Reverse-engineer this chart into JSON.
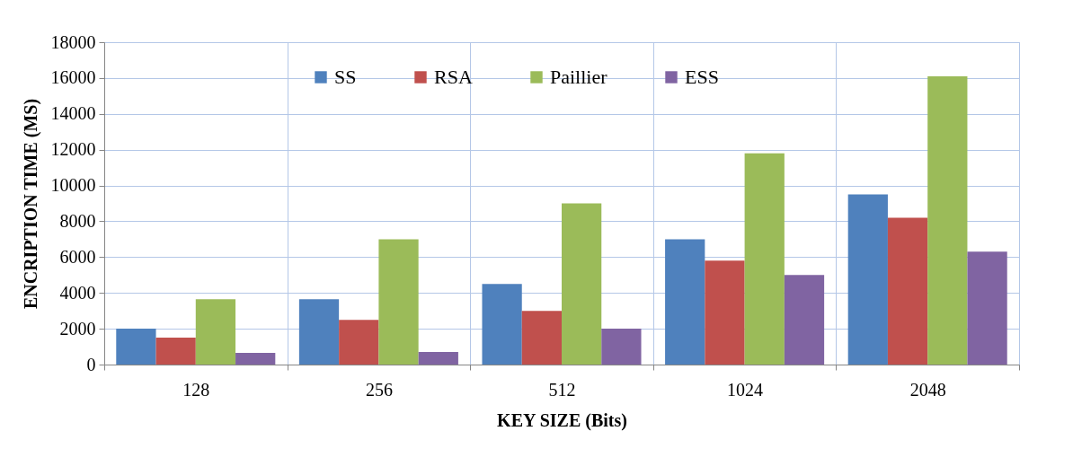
{
  "chart_data": {
    "type": "bar",
    "xlabel": "KEY SIZE (Bits)",
    "ylabel": "ENCRIPTION TIME (MS)",
    "categories": [
      "128",
      "256",
      "512",
      "1024",
      "2048"
    ],
    "series": [
      {
        "name": "SS",
        "color": "#4f81bd",
        "values": [
          2000,
          3650,
          4500,
          7000,
          9500
        ]
      },
      {
        "name": "RSA",
        "color": "#c0504d",
        "values": [
          1500,
          2500,
          3000,
          5800,
          8200
        ]
      },
      {
        "name": "Paillier",
        "color": "#9bbb59",
        "values": [
          3650,
          7000,
          9000,
          11800,
          16100
        ]
      },
      {
        "name": "ESS",
        "color": "#8064a2",
        "values": [
          650,
          700,
          2000,
          5000,
          6300
        ]
      }
    ],
    "ylim": [
      0,
      18000
    ],
    "yticks": [
      0,
      2000,
      4000,
      6000,
      8000,
      10000,
      12000,
      14000,
      16000,
      18000
    ],
    "grid": true,
    "legend": "top"
  }
}
